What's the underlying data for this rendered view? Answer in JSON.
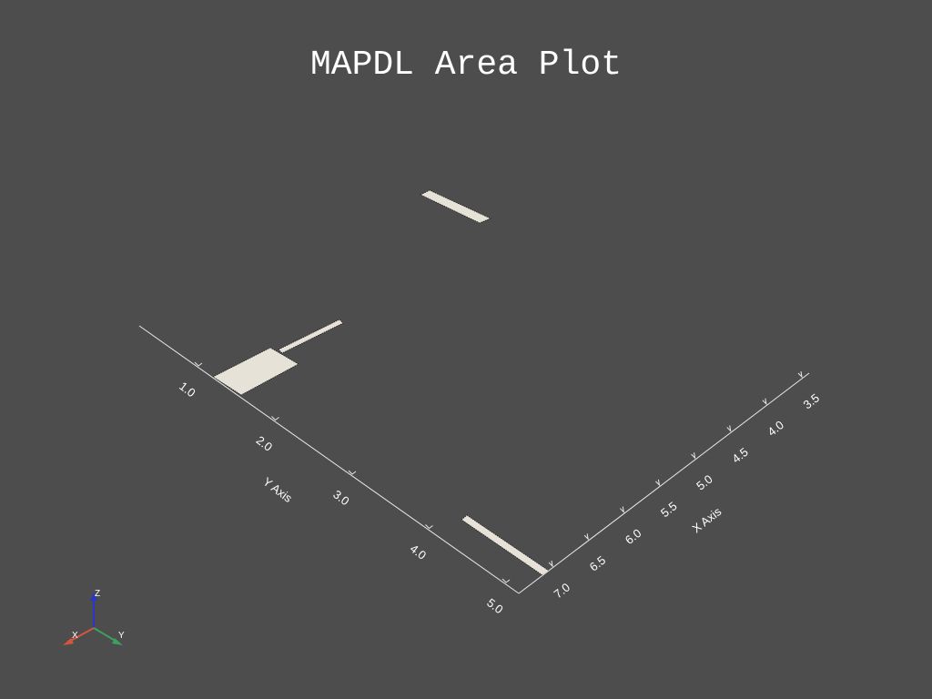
{
  "title": "MAPDL Area Plot",
  "y_axis": {
    "title": "Y Axis",
    "ticks": [
      "1.0",
      "2.0",
      "3.0",
      "4.0",
      "5.0"
    ]
  },
  "x_axis": {
    "title": "X Axis",
    "ticks": [
      "3.5",
      "4.0",
      "4.5",
      "5.0",
      "5.5",
      "6.0",
      "6.5",
      "7.0"
    ]
  },
  "triad": {
    "x_label": "X",
    "y_label": "Y",
    "z_label": "Z",
    "x_color": "#d9533f",
    "y_color": "#3f9f5f",
    "z_color": "#2b35c8"
  },
  "colors": {
    "background": "#4d4d4d",
    "area_fill": "#e6e2d8",
    "axis": "#e8e8e8"
  }
}
